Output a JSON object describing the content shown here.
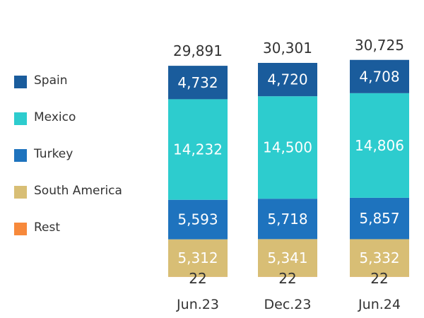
{
  "chart_data": {
    "type": "bar",
    "stacked": true,
    "legend_position": "left",
    "grid": false,
    "categories": [
      "Jun.23",
      "Dec.23",
      "Jun.24"
    ],
    "totals": [
      29891,
      30301,
      30725
    ],
    "series": [
      {
        "name": "Spain",
        "color": "#1a5c9c",
        "values": [
          4732,
          4720,
          4708
        ]
      },
      {
        "name": "Mexico",
        "color": "#2dccce",
        "values": [
          14232,
          14500,
          14806
        ]
      },
      {
        "name": "Turkey",
        "color": "#1e73be",
        "values": [
          5593,
          5718,
          5857
        ]
      },
      {
        "name": "South America",
        "color": "#d8be75",
        "values": [
          5312,
          5341,
          5332
        ]
      },
      {
        "name": "Rest",
        "color": "#f7893b",
        "values": [
          22,
          22,
          22
        ]
      }
    ]
  }
}
